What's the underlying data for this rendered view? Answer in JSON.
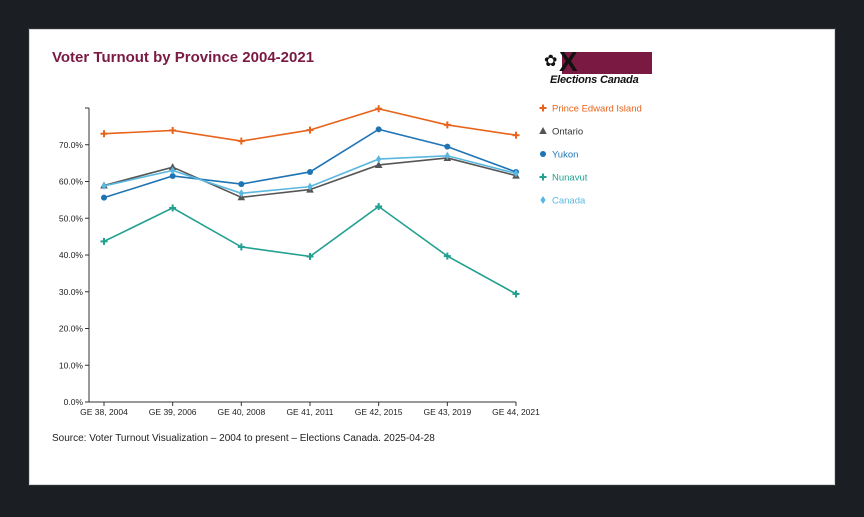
{
  "page": {
    "title": "Voter Turnout by Province 2004-2021",
    "source": "Source: Voter Turnout Visualization – 2004 to present – Elections Canada.  2025-04-28",
    "logo_text": "Elections Canada",
    "logo_icon": "maple-leaf-x-logo"
  },
  "chart_data": {
    "type": "line",
    "title": "Voter Turnout by Province 2004-2021",
    "xlabel": "",
    "ylabel": "",
    "categories": [
      "GE 38, 2004",
      "GE 39, 2006",
      "GE 40, 2008",
      "GE 41, 2011",
      "GE 42, 2015",
      "GE 43, 2019",
      "GE 44, 2021"
    ],
    "yticks": [
      "0.0%",
      "10.0%",
      "20.0%",
      "30.0%",
      "40.0%",
      "50.0%",
      "60.0%",
      "70.0%"
    ],
    "ylim": [
      0,
      80
    ],
    "grid": false,
    "legend_position": "right",
    "series": [
      {
        "name": "Prince Edward Island",
        "color": "#e8641c",
        "marker": "plus",
        "values": [
          73.0,
          73.9,
          71.0,
          74.0,
          79.8,
          75.4,
          72.6
        ]
      },
      {
        "name": "Ontario",
        "color": "#555555",
        "marker": "triangle",
        "values": [
          58.9,
          63.9,
          55.7,
          57.8,
          64.5,
          66.4,
          61.6
        ]
      },
      {
        "name": "Yukon",
        "color": "#1f74b4",
        "marker": "circle",
        "values": [
          55.6,
          61.5,
          59.3,
          62.6,
          74.2,
          69.5,
          62.6
        ]
      },
      {
        "name": "Nunavut",
        "color": "#22a090",
        "marker": "plus",
        "values": [
          43.7,
          52.8,
          42.2,
          39.6,
          53.2,
          39.7,
          29.4
        ]
      },
      {
        "name": "Canada",
        "color": "#5ab8e0",
        "marker": "diamond",
        "values": [
          58.8,
          63.0,
          56.8,
          58.6,
          66.1,
          67.0,
          62.2
        ]
      }
    ]
  }
}
